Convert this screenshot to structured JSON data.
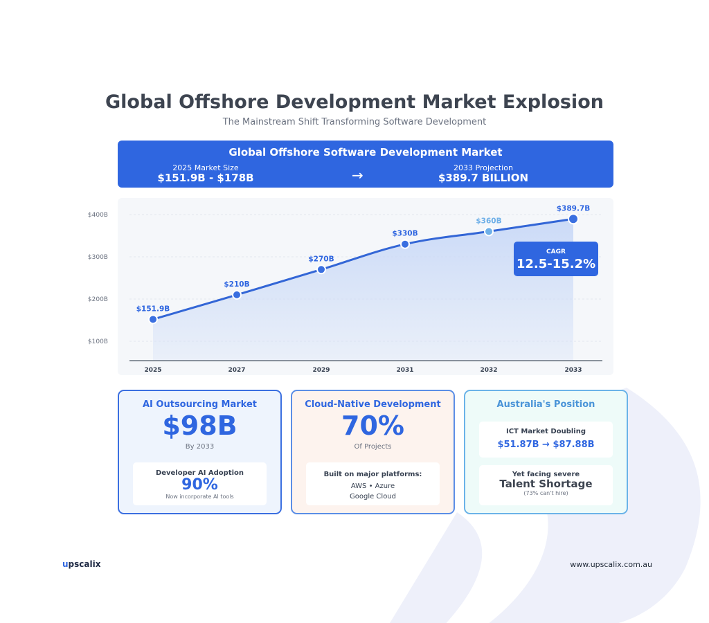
{
  "header": {
    "title": "Global Offshore Development Market Explosion",
    "subtitle": "The Mainstream Shift Transforming Software Development"
  },
  "banner": {
    "title": "Global Offshore Software Development Market",
    "left_label": "2025 Market Size",
    "left_value": "$151.9B - $178B",
    "arrow": "→",
    "right_label": "2033 Projection",
    "right_value": "$389.7 BILLION"
  },
  "cagr": {
    "label": "CAGR",
    "value": "12.5-15.2%"
  },
  "chart_data": {
    "type": "area",
    "categories": [
      "2025",
      "2027",
      "2029",
      "2031",
      "2032",
      "2033"
    ],
    "values": [
      151.9,
      210,
      270,
      330,
      360,
      389.7
    ],
    "data_labels": [
      "$151.9B",
      "$210B",
      "$270B",
      "$330B",
      "$360B",
      "$389.7B"
    ],
    "y_ticks": [
      100,
      200,
      300,
      400
    ],
    "y_tick_labels": [
      "$100B",
      "$200B",
      "$300B",
      "$400B"
    ],
    "ylim": [
      40,
      430
    ],
    "grid": true,
    "colors": {
      "line": "#3366d6",
      "marker": "#3a6fe0",
      "marker_light": "#6fb0e8",
      "fill": "#c9d9f7"
    }
  },
  "cards": {
    "ai": {
      "title": "AI Outsourcing Market",
      "big": "$98B",
      "sub": "By 2033",
      "inner_label": "Developer AI Adoption",
      "inner_big": "90%",
      "inner_note": "Now incorporate AI tools"
    },
    "cloud": {
      "title": "Cloud-Native Development",
      "big": "70%",
      "sub": "Of Projects",
      "inner_label": "Built on major platforms:",
      "inner_line1": "AWS • Azure",
      "inner_line2": "Google Cloud"
    },
    "australia": {
      "title": "Australia's Position",
      "ict_label": "ICT Market Doubling",
      "ict_value": "$51.87B → $87.88B",
      "facing": "Yet facing severe",
      "shortage": "Talent Shortage",
      "note": "(73% can't hire)"
    }
  },
  "footer": {
    "logo_u": "u",
    "logo_rest": "pscalix",
    "website": "www.upscalix.com.au"
  }
}
